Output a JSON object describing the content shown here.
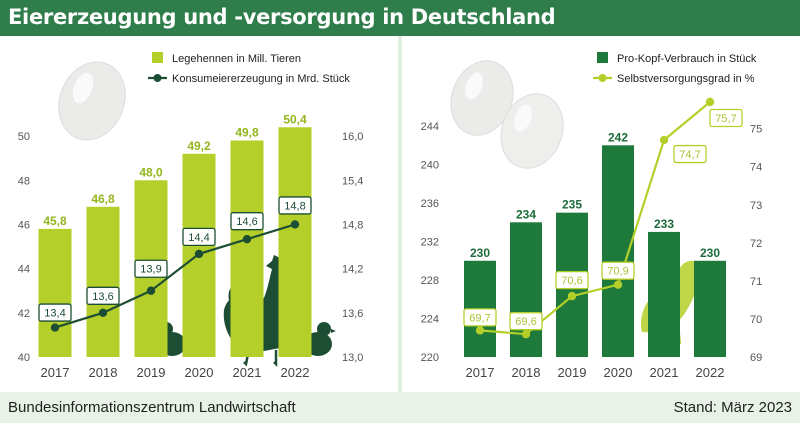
{
  "header": {
    "title": "Eiererzeugung und -versorgung in Deutschland"
  },
  "footer": {
    "source": "Bundesinformationszentrum Landwirtschaft",
    "date": "Stand: März 2023"
  },
  "colors": {
    "title_bg": "#2e7d4a",
    "light_green": "#b5cf2a",
    "dark_green": "#1e7a3a",
    "line_dark": "#1d4d33",
    "line_light": "#b5cf2a"
  },
  "chart_data": [
    {
      "type": "bar",
      "categories": [
        "2017",
        "2018",
        "2019",
        "2020",
        "2021",
        "2022"
      ],
      "series": [
        {
          "name": "Legehennen in Mill. Tieren",
          "type": "bar",
          "axis": "left",
          "values": [
            45.8,
            46.8,
            48.0,
            49.2,
            49.8,
            50.4
          ],
          "labels": [
            "45,8",
            "46,8",
            "48,0",
            "49,2",
            "49,8",
            "50,4"
          ]
        },
        {
          "name": "Konsumeiererzeugung in Mrd. Stück",
          "type": "line",
          "axis": "right",
          "values": [
            13.4,
            13.6,
            13.9,
            14.4,
            14.6,
            14.8
          ],
          "labels": [
            "13,4",
            "13,6",
            "13,9",
            "14,4",
            "14,6",
            "14,8"
          ]
        }
      ],
      "ylim_left": [
        40,
        51
      ],
      "yticks_left": [
        "40",
        "42",
        "44",
        "46",
        "48",
        "50"
      ],
      "ylim_right": [
        13.0,
        16.3
      ],
      "yticks_right": [
        "13,0",
        "13,6",
        "14,2",
        "14,8",
        "15,4",
        "16,0"
      ],
      "legend": "top-right",
      "grid": false
    },
    {
      "type": "bar",
      "categories": [
        "2017",
        "2018",
        "2019",
        "2020",
        "2021",
        "2022"
      ],
      "series": [
        {
          "name": "Pro-Kopf-Verbrauch in Stück",
          "type": "bar",
          "axis": "left",
          "values": [
            230,
            234,
            235,
            242,
            233,
            230
          ],
          "labels": [
            "230",
            "234",
            "235",
            "242",
            "233",
            "230"
          ]
        },
        {
          "name": "Selbstversorgungsgrad in %",
          "type": "line",
          "axis": "right",
          "values": [
            69.7,
            69.6,
            70.6,
            70.9,
            74.7,
            75.7
          ],
          "labels": [
            "69,7",
            "69,6",
            "70,6",
            "70,9",
            "74,7",
            "75,7"
          ]
        }
      ],
      "ylim_left": [
        220,
        246.5
      ],
      "yticks_left": [
        "220",
        "224",
        "228",
        "232",
        "236",
        "240",
        "244"
      ],
      "ylim_right": [
        69,
        75.7
      ],
      "yticks_right": [
        "69",
        "70",
        "71",
        "72",
        "73",
        "74",
        "75"
      ],
      "legend": "top-right",
      "grid": false
    }
  ]
}
